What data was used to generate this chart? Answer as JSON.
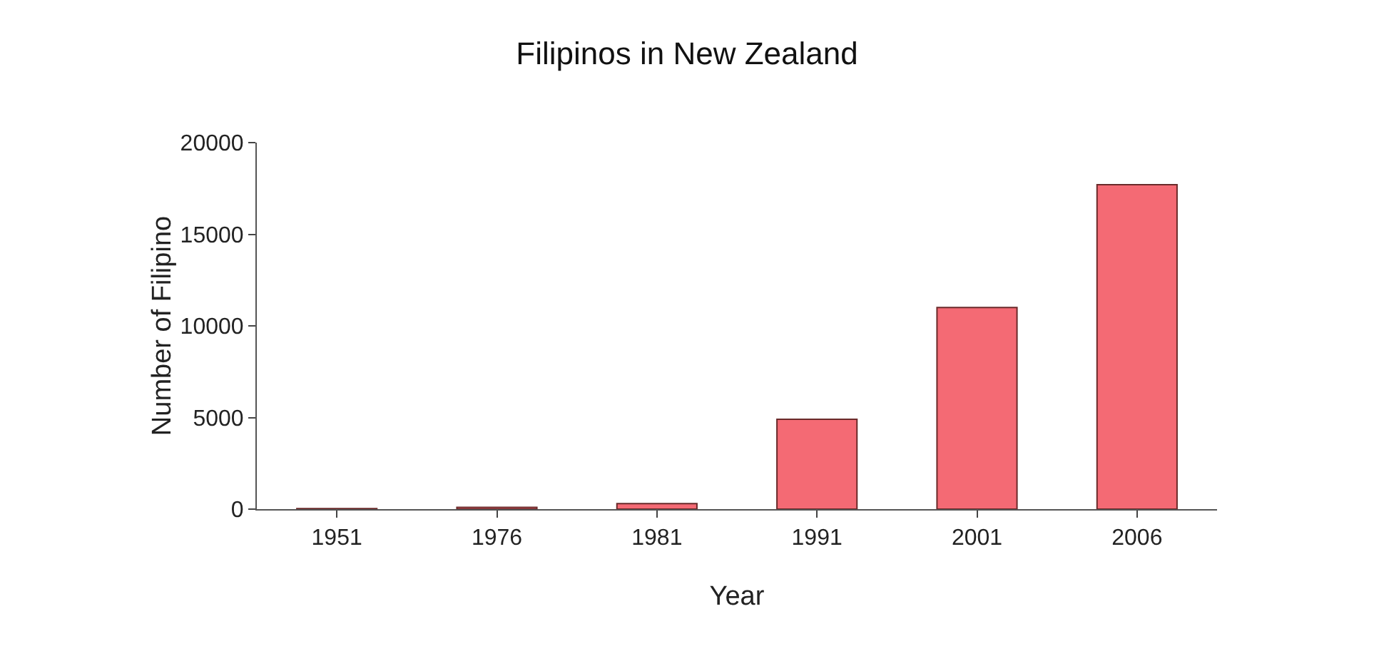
{
  "chart_data": {
    "type": "bar",
    "title": "Filipinos in New Zealand",
    "xlabel": "Year",
    "ylabel": "Number of Filipino",
    "categories": [
      "1951",
      "1976",
      "1981",
      "1991",
      "2001",
      "2006"
    ],
    "values": [
      30,
      100,
      300,
      4900,
      11000,
      17700
    ],
    "color": "#f46a74",
    "ylim": [
      0,
      20000
    ],
    "yticks": [
      0,
      5000,
      10000,
      15000,
      20000
    ]
  }
}
